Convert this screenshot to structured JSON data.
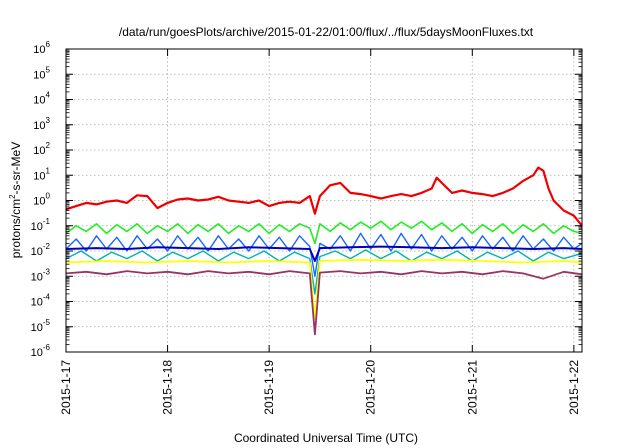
{
  "chart_data": {
    "type": "line",
    "title": "/data/run/goesPlots/archive/2015-01-22/01:00/flux/../flux/5daysMoonFluxes.txt",
    "xlabel": "Coordinated Universal Time (UTC)",
    "ylabel_parts": [
      "protons/cm",
      "2",
      "-s-sr-MeV"
    ],
    "yscale": "log",
    "ylim": [
      1e-06,
      1000000.0
    ],
    "xlim": [
      0,
      5.08
    ],
    "grid": true,
    "legend": "none",
    "yticks": [
      {
        "v": -6,
        "base": "10",
        "exp": "-6"
      },
      {
        "v": -5,
        "base": "10",
        "exp": "-5"
      },
      {
        "v": -4,
        "base": "10",
        "exp": "-4"
      },
      {
        "v": -3,
        "base": "10",
        "exp": "-3"
      },
      {
        "v": -2,
        "base": "10",
        "exp": "-2"
      },
      {
        "v": -1,
        "base": "10",
        "exp": "-1"
      },
      {
        "v": 0,
        "base": "10",
        "exp": "0"
      },
      {
        "v": 1,
        "base": "10",
        "exp": "1"
      },
      {
        "v": 2,
        "base": "10",
        "exp": "2"
      },
      {
        "v": 3,
        "base": "10",
        "exp": "3"
      },
      {
        "v": 4,
        "base": "10",
        "exp": "4"
      },
      {
        "v": 5,
        "base": "10",
        "exp": "5"
      },
      {
        "v": 6,
        "base": "10",
        "exp": "6"
      }
    ],
    "xticks": [
      {
        "v": 0,
        "label": "2015-1-17"
      },
      {
        "v": 1,
        "label": "2015-1-18"
      },
      {
        "v": 2,
        "label": "2015-1-19"
      },
      {
        "v": 3,
        "label": "2015-1-20"
      },
      {
        "v": 4,
        "label": "2015-1-21"
      },
      {
        "v": 5,
        "label": "2015-1-22"
      }
    ],
    "series": [
      {
        "color": "#ee0000",
        "width": 2.2,
        "points": [
          [
            0,
            0.45
          ],
          [
            0.1,
            0.6
          ],
          [
            0.2,
            0.8
          ],
          [
            0.3,
            0.7
          ],
          [
            0.4,
            0.9
          ],
          [
            0.5,
            1.0
          ],
          [
            0.6,
            0.8
          ],
          [
            0.7,
            1.6
          ],
          [
            0.8,
            1.5
          ],
          [
            0.9,
            0.5
          ],
          [
            1.0,
            0.8
          ],
          [
            1.1,
            1.1
          ],
          [
            1.2,
            1.2
          ],
          [
            1.3,
            1.0
          ],
          [
            1.4,
            1.1
          ],
          [
            1.5,
            1.4
          ],
          [
            1.6,
            1.0
          ],
          [
            1.7,
            0.9
          ],
          [
            1.8,
            0.8
          ],
          [
            1.9,
            1.0
          ],
          [
            2.0,
            0.6
          ],
          [
            2.1,
            0.8
          ],
          [
            2.2,
            0.9
          ],
          [
            2.3,
            0.8
          ],
          [
            2.4,
            1.5
          ],
          [
            2.45,
            0.3
          ],
          [
            2.5,
            1.5
          ],
          [
            2.6,
            4.0
          ],
          [
            2.7,
            5.0
          ],
          [
            2.8,
            2.0
          ],
          [
            2.9,
            1.8
          ],
          [
            3.0,
            1.5
          ],
          [
            3.1,
            1.2
          ],
          [
            3.2,
            1.5
          ],
          [
            3.3,
            1.8
          ],
          [
            3.4,
            1.5
          ],
          [
            3.5,
            2.0
          ],
          [
            3.6,
            3.0
          ],
          [
            3.65,
            8.0
          ],
          [
            3.7,
            5.0
          ],
          [
            3.8,
            2.0
          ],
          [
            3.9,
            2.5
          ],
          [
            4.0,
            2.0
          ],
          [
            4.1,
            1.8
          ],
          [
            4.2,
            1.5
          ],
          [
            4.3,
            2.0
          ],
          [
            4.4,
            3.0
          ],
          [
            4.5,
            6.0
          ],
          [
            4.6,
            10.0
          ],
          [
            4.65,
            20.0
          ],
          [
            4.7,
            15.0
          ],
          [
            4.75,
            3.0
          ],
          [
            4.8,
            1.0
          ],
          [
            4.9,
            0.4
          ],
          [
            5.0,
            0.25
          ],
          [
            5.08,
            0.1
          ]
        ]
      },
      {
        "color": "#22ee22",
        "width": 1.6,
        "points": [
          [
            0,
            0.05
          ],
          [
            0.1,
            0.1
          ],
          [
            0.2,
            0.06
          ],
          [
            0.3,
            0.12
          ],
          [
            0.4,
            0.05
          ],
          [
            0.5,
            0.11
          ],
          [
            0.6,
            0.06
          ],
          [
            0.7,
            0.12
          ],
          [
            0.8,
            0.05
          ],
          [
            0.9,
            0.1
          ],
          [
            1.0,
            0.06
          ],
          [
            1.1,
            0.12
          ],
          [
            1.2,
            0.05
          ],
          [
            1.3,
            0.11
          ],
          [
            1.4,
            0.06
          ],
          [
            1.5,
            0.12
          ],
          [
            1.6,
            0.05
          ],
          [
            1.7,
            0.1
          ],
          [
            1.8,
            0.06
          ],
          [
            1.9,
            0.12
          ],
          [
            2.0,
            0.05
          ],
          [
            2.1,
            0.11
          ],
          [
            2.2,
            0.06
          ],
          [
            2.3,
            0.12
          ],
          [
            2.4,
            0.08
          ],
          [
            2.45,
            0.02
          ],
          [
            2.5,
            0.12
          ],
          [
            2.6,
            0.06
          ],
          [
            2.7,
            0.13
          ],
          [
            2.8,
            0.07
          ],
          [
            2.9,
            0.14
          ],
          [
            3.0,
            0.08
          ],
          [
            3.1,
            0.15
          ],
          [
            3.2,
            0.07
          ],
          [
            3.3,
            0.14
          ],
          [
            3.4,
            0.08
          ],
          [
            3.5,
            0.15
          ],
          [
            3.6,
            0.07
          ],
          [
            3.7,
            0.13
          ],
          [
            3.8,
            0.06
          ],
          [
            3.9,
            0.12
          ],
          [
            4.0,
            0.05
          ],
          [
            4.1,
            0.11
          ],
          [
            4.2,
            0.06
          ],
          [
            4.3,
            0.12
          ],
          [
            4.4,
            0.05
          ],
          [
            4.5,
            0.11
          ],
          [
            4.6,
            0.06
          ],
          [
            4.7,
            0.12
          ],
          [
            4.8,
            0.05
          ],
          [
            4.9,
            0.1
          ],
          [
            5.0,
            0.06
          ],
          [
            5.08,
            0.05
          ]
        ]
      },
      {
        "color": "#1a66ff",
        "width": 1.4,
        "points": [
          [
            0,
            0.012
          ],
          [
            0.1,
            0.03
          ],
          [
            0.2,
            0.01
          ],
          [
            0.3,
            0.04
          ],
          [
            0.4,
            0.012
          ],
          [
            0.5,
            0.035
          ],
          [
            0.6,
            0.01
          ],
          [
            0.7,
            0.04
          ],
          [
            0.8,
            0.012
          ],
          [
            0.9,
            0.03
          ],
          [
            1.0,
            0.01
          ],
          [
            1.1,
            0.04
          ],
          [
            1.2,
            0.012
          ],
          [
            1.3,
            0.035
          ],
          [
            1.4,
            0.01
          ],
          [
            1.5,
            0.04
          ],
          [
            1.6,
            0.012
          ],
          [
            1.7,
            0.03
          ],
          [
            1.8,
            0.01
          ],
          [
            1.9,
            0.04
          ],
          [
            2.0,
            0.012
          ],
          [
            2.1,
            0.035
          ],
          [
            2.2,
            0.01
          ],
          [
            2.3,
            0.04
          ],
          [
            2.4,
            0.015
          ],
          [
            2.45,
            0.001
          ],
          [
            2.5,
            0.02
          ],
          [
            2.6,
            0.012
          ],
          [
            2.7,
            0.04
          ],
          [
            2.8,
            0.01
          ],
          [
            2.9,
            0.05
          ],
          [
            3.0,
            0.012
          ],
          [
            3.1,
            0.045
          ],
          [
            3.2,
            0.01
          ],
          [
            3.3,
            0.05
          ],
          [
            3.4,
            0.012
          ],
          [
            3.5,
            0.045
          ],
          [
            3.6,
            0.01
          ],
          [
            3.7,
            0.04
          ],
          [
            3.8,
            0.012
          ],
          [
            3.9,
            0.035
          ],
          [
            4.0,
            0.01
          ],
          [
            4.1,
            0.04
          ],
          [
            4.2,
            0.012
          ],
          [
            4.3,
            0.035
          ],
          [
            4.4,
            0.01
          ],
          [
            4.5,
            0.04
          ],
          [
            4.6,
            0.012
          ],
          [
            4.7,
            0.03
          ],
          [
            4.8,
            0.01
          ],
          [
            4.9,
            0.035
          ],
          [
            5.0,
            0.012
          ],
          [
            5.08,
            0.02
          ]
        ]
      },
      {
        "color": "#0000bb",
        "width": 2.0,
        "points": [
          [
            0,
            0.012
          ],
          [
            0.3,
            0.013
          ],
          [
            0.6,
            0.012
          ],
          [
            0.9,
            0.014
          ],
          [
            1.2,
            0.013
          ],
          [
            1.5,
            0.012
          ],
          [
            1.8,
            0.014
          ],
          [
            2.1,
            0.013
          ],
          [
            2.4,
            0.012
          ],
          [
            2.45,
            0.004
          ],
          [
            2.5,
            0.013
          ],
          [
            2.8,
            0.014
          ],
          [
            3.1,
            0.015
          ],
          [
            3.4,
            0.014
          ],
          [
            3.7,
            0.013
          ],
          [
            4.0,
            0.014
          ],
          [
            4.3,
            0.013
          ],
          [
            4.6,
            0.012
          ],
          [
            4.9,
            0.013
          ],
          [
            5.08,
            0.012
          ]
        ]
      },
      {
        "color": "#00b3b3",
        "width": 1.4,
        "points": [
          [
            0,
            0.005
          ],
          [
            0.15,
            0.01
          ],
          [
            0.3,
            0.004
          ],
          [
            0.45,
            0.009
          ],
          [
            0.6,
            0.005
          ],
          [
            0.75,
            0.01
          ],
          [
            0.9,
            0.004
          ],
          [
            1.05,
            0.009
          ],
          [
            1.2,
            0.005
          ],
          [
            1.35,
            0.01
          ],
          [
            1.5,
            0.004
          ],
          [
            1.65,
            0.009
          ],
          [
            1.8,
            0.005
          ],
          [
            1.95,
            0.01
          ],
          [
            2.1,
            0.004
          ],
          [
            2.25,
            0.009
          ],
          [
            2.4,
            0.005
          ],
          [
            2.45,
            0.0002
          ],
          [
            2.5,
            0.006
          ],
          [
            2.65,
            0.01
          ],
          [
            2.8,
            0.005
          ],
          [
            2.95,
            0.011
          ],
          [
            3.1,
            0.005
          ],
          [
            3.25,
            0.01
          ],
          [
            3.4,
            0.004
          ],
          [
            3.55,
            0.009
          ],
          [
            3.7,
            0.005
          ],
          [
            3.85,
            0.01
          ],
          [
            4.0,
            0.004
          ],
          [
            4.15,
            0.009
          ],
          [
            4.3,
            0.005
          ],
          [
            4.45,
            0.01
          ],
          [
            4.6,
            0.004
          ],
          [
            4.75,
            0.009
          ],
          [
            4.9,
            0.005
          ],
          [
            5.08,
            0.008
          ]
        ]
      },
      {
        "color": "#ffff00",
        "width": 1.8,
        "points": [
          [
            0,
            0.0035
          ],
          [
            0.4,
            0.004
          ],
          [
            0.8,
            0.0035
          ],
          [
            1.2,
            0.004
          ],
          [
            1.6,
            0.0035
          ],
          [
            2.0,
            0.004
          ],
          [
            2.4,
            0.0035
          ],
          [
            2.45,
            2e-05
          ],
          [
            2.5,
            0.004
          ],
          [
            2.9,
            0.0045
          ],
          [
            3.3,
            0.004
          ],
          [
            3.7,
            0.0045
          ],
          [
            4.1,
            0.004
          ],
          [
            4.5,
            0.0035
          ],
          [
            4.9,
            0.004
          ],
          [
            5.08,
            0.0035
          ]
        ]
      },
      {
        "color": "#993366",
        "width": 1.8,
        "points": [
          [
            0,
            0.0013
          ],
          [
            0.2,
            0.0015
          ],
          [
            0.4,
            0.0012
          ],
          [
            0.6,
            0.0016
          ],
          [
            0.8,
            0.0013
          ],
          [
            1.0,
            0.0015
          ],
          [
            1.2,
            0.0012
          ],
          [
            1.4,
            0.0016
          ],
          [
            1.6,
            0.0013
          ],
          [
            1.8,
            0.0015
          ],
          [
            2.0,
            0.0012
          ],
          [
            2.2,
            0.0016
          ],
          [
            2.4,
            0.0013
          ],
          [
            2.45,
            5e-06
          ],
          [
            2.5,
            0.0014
          ],
          [
            2.7,
            0.0016
          ],
          [
            2.9,
            0.0013
          ],
          [
            3.1,
            0.0015
          ],
          [
            3.3,
            0.0012
          ],
          [
            3.5,
            0.0016
          ],
          [
            3.7,
            0.0013
          ],
          [
            3.9,
            0.0015
          ],
          [
            4.1,
            0.0012
          ],
          [
            4.3,
            0.0016
          ],
          [
            4.5,
            0.0013
          ],
          [
            4.7,
            0.0008
          ],
          [
            4.9,
            0.0015
          ],
          [
            5.08,
            0.0012
          ]
        ]
      }
    ]
  }
}
